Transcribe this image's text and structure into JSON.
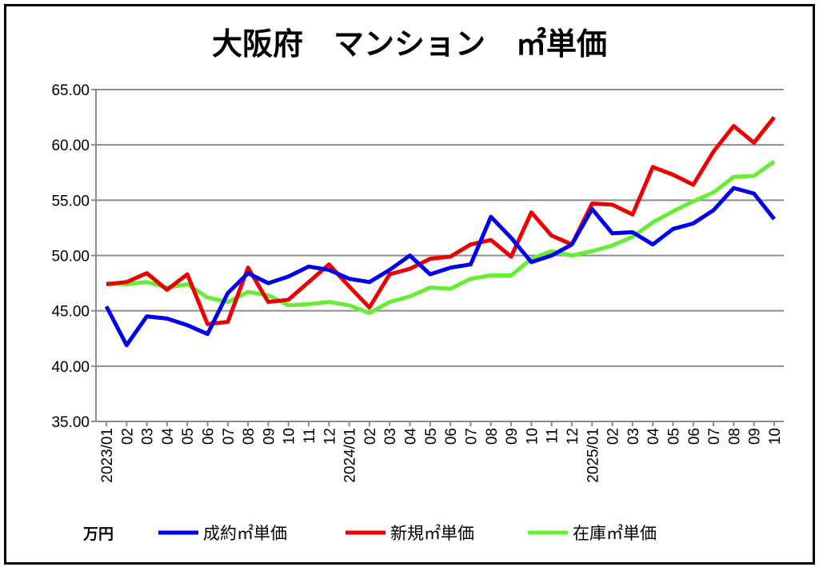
{
  "chart_data": {
    "type": "line",
    "title": "大阪府　マンション　㎡単価",
    "unit_label": "万円",
    "ylim": [
      35,
      65
    ],
    "yticks": [
      "35.00",
      "40.00",
      "45.00",
      "50.00",
      "55.00",
      "60.00",
      "65.00"
    ],
    "ytick_values": [
      35,
      40,
      45,
      50,
      55,
      60,
      65
    ],
    "grid": true,
    "legend_position": "bottom",
    "categories": [
      "2023/01",
      "02",
      "03",
      "04",
      "05",
      "06",
      "07",
      "08",
      "09",
      "10",
      "11",
      "12",
      "2024/01",
      "02",
      "03",
      "04",
      "05",
      "06",
      "07",
      "08",
      "09",
      "10",
      "11",
      "12",
      "2025/01",
      "02",
      "03",
      "04",
      "05",
      "06",
      "07",
      "08",
      "09",
      "10"
    ],
    "series": [
      {
        "name": "成約㎡単価",
        "color": "#0000ee",
        "values": [
          45.4,
          41.9,
          44.5,
          44.3,
          43.7,
          42.9,
          46.6,
          48.4,
          47.5,
          48.1,
          49.0,
          48.7,
          47.9,
          47.6,
          48.7,
          50.0,
          48.3,
          48.9,
          49.2,
          53.5,
          51.6,
          49.4,
          50.0,
          51.0,
          54.2,
          52.0,
          52.1,
          51.0,
          52.4,
          52.9,
          54.1,
          56.1,
          55.6,
          53.3
        ]
      },
      {
        "name": "新規㎡単価",
        "color": "#ee0000",
        "values": [
          47.4,
          47.6,
          48.4,
          46.9,
          48.3,
          43.8,
          44.0,
          48.9,
          45.8,
          46.0,
          47.6,
          49.2,
          47.2,
          45.3,
          48.3,
          48.8,
          49.7,
          49.9,
          51.0,
          51.4,
          49.9,
          53.9,
          51.8,
          51.0,
          54.7,
          54.6,
          53.7,
          58.0,
          57.3,
          56.4,
          59.4,
          61.7,
          60.2,
          62.5
        ]
      },
      {
        "name": "在庫㎡単価",
        "color": "#66ee33",
        "values": [
          47.5,
          47.4,
          47.6,
          47.1,
          47.4,
          46.2,
          45.8,
          46.7,
          46.4,
          45.5,
          45.6,
          45.8,
          45.5,
          44.8,
          45.8,
          46.3,
          47.1,
          47.0,
          47.9,
          48.2,
          48.2,
          49.7,
          50.4,
          50.0,
          50.4,
          50.9,
          51.7,
          53.0,
          54.0,
          54.9,
          55.7,
          57.1,
          57.2,
          58.5
        ]
      }
    ]
  }
}
